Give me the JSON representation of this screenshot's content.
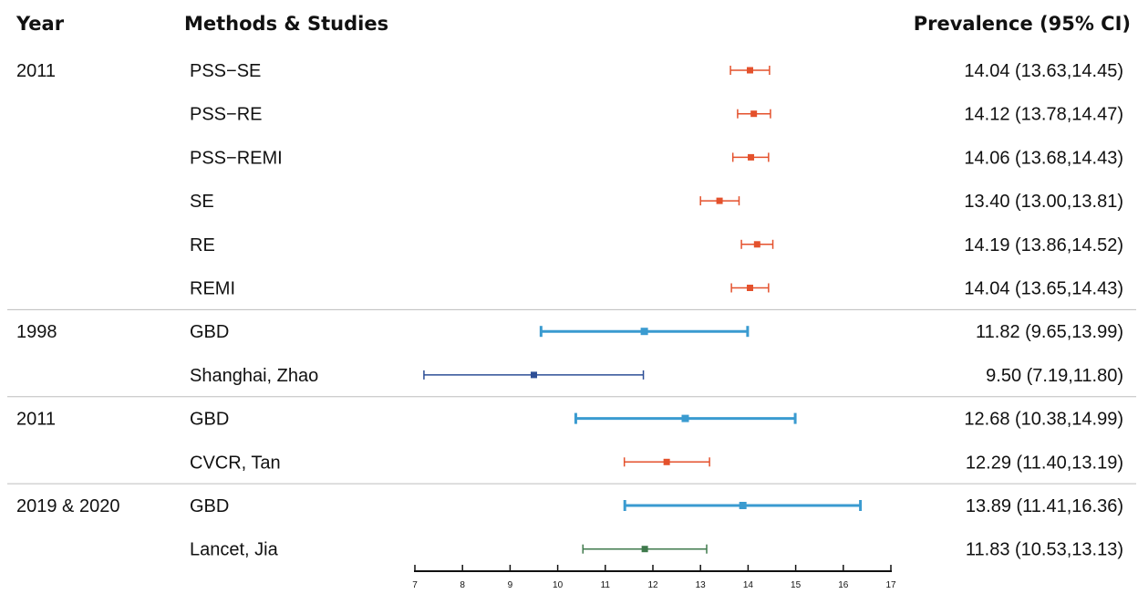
{
  "headers": {
    "year": "Year",
    "methods": "Methods & Studies",
    "prevalence": "Prevalence (95% CI)"
  },
  "colors": {
    "orange": "#e4512c",
    "blue": "#3a9bd0",
    "navy": "#2d4f96",
    "green": "#3f7a4c",
    "axis": "#111111",
    "separator": "#bdbdbd"
  },
  "chart_data": {
    "type": "forest",
    "xlim": [
      7,
      17
    ],
    "xticks": [
      "7",
      "8",
      "9",
      "10",
      "11",
      "12",
      "13",
      "14",
      "15",
      "16",
      "17"
    ],
    "groups": [
      {
        "year": "2011",
        "rows": [
          {
            "label": "PSS−SE",
            "est": 14.04,
            "lo": 13.63,
            "hi": 14.45,
            "text": "14.04 (13.63,14.45)",
            "color": "orange"
          },
          {
            "label": "PSS−RE",
            "est": 14.12,
            "lo": 13.78,
            "hi": 14.47,
            "text": "14.12 (13.78,14.47)",
            "color": "orange"
          },
          {
            "label": "PSS−REMI",
            "est": 14.06,
            "lo": 13.68,
            "hi": 14.43,
            "text": "14.06 (13.68,14.43)",
            "color": "orange"
          },
          {
            "label": "SE",
            "est": 13.4,
            "lo": 13.0,
            "hi": 13.81,
            "text": "13.40 (13.00,13.81)",
            "color": "orange"
          },
          {
            "label": "RE",
            "est": 14.19,
            "lo": 13.86,
            "hi": 14.52,
            "text": "14.19 (13.86,14.52)",
            "color": "orange"
          },
          {
            "label": "REMI",
            "est": 14.04,
            "lo": 13.65,
            "hi": 14.43,
            "text": "14.04 (13.65,14.43)",
            "color": "orange"
          }
        ]
      },
      {
        "year": "1998",
        "rows": [
          {
            "label": "GBD",
            "est": 11.82,
            "lo": 9.65,
            "hi": 13.99,
            "text": "11.82 (9.65,13.99)",
            "color": "blue"
          },
          {
            "label": "Shanghai, Zhao",
            "est": 9.5,
            "lo": 7.19,
            "hi": 11.8,
            "text": "9.50 (7.19,11.80)",
            "color": "navy"
          }
        ]
      },
      {
        "year": "2011",
        "rows": [
          {
            "label": "GBD",
            "est": 12.68,
            "lo": 10.38,
            "hi": 14.99,
            "text": "12.68 (10.38,14.99)",
            "color": "blue"
          },
          {
            "label": "CVCR, Tan",
            "est": 12.29,
            "lo": 11.4,
            "hi": 13.19,
            "text": "12.29 (11.40,13.19)",
            "color": "orange"
          }
        ]
      },
      {
        "year": "2019 & 2020",
        "rows": [
          {
            "label": "GBD",
            "est": 13.89,
            "lo": 11.41,
            "hi": 16.36,
            "text": "13.89 (11.41,16.36)",
            "color": "blue"
          },
          {
            "label": "Lancet, Jia",
            "est": 11.83,
            "lo": 10.53,
            "hi": 13.13,
            "text": "11.83 (10.53,13.13)",
            "color": "green"
          }
        ]
      }
    ]
  }
}
